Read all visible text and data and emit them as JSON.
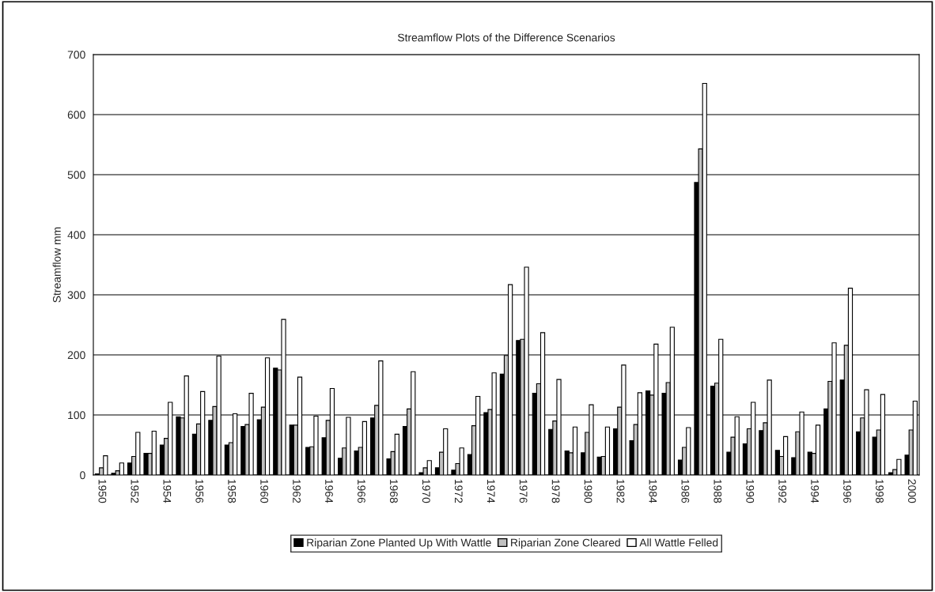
{
  "chart_data": {
    "type": "bar",
    "title": "Streamflow Plots of the Difference Scenarios",
    "ylabel": "Streamflow mm",
    "categories": [
      "1950",
      null,
      "1952",
      null,
      "1954",
      null,
      "1956",
      null,
      "1958",
      null,
      "1960",
      null,
      "1962",
      null,
      "1964",
      null,
      "1966",
      null,
      "1968",
      null,
      "1970",
      null,
      "1972",
      null,
      "1974",
      null,
      "1976",
      null,
      "1978",
      null,
      "1980",
      null,
      "1982",
      null,
      "1984",
      null,
      "1986",
      null,
      "1988",
      null,
      "1990",
      null,
      "1992",
      null,
      "1994",
      null,
      "1996",
      null,
      "1998",
      null,
      "2000"
    ],
    "series": [
      {
        "name": "Riparian Zone Planted Up With Wattle",
        "color": "#000000",
        "values": [
          2,
          3,
          20,
          36,
          50,
          97,
          68,
          91,
          50,
          81,
          92,
          178,
          83,
          46,
          62,
          28,
          40,
          95,
          27,
          81,
          4,
          12,
          8,
          34,
          104,
          168,
          224,
          136,
          76,
          40,
          37,
          30,
          77,
          57,
          140,
          136,
          25,
          487,
          148,
          38,
          52,
          74,
          41,
          29,
          38,
          110,
          158,
          72,
          63,
          4,
          33
        ]
      },
      {
        "name": "Riparian Zone Cleared",
        "color": "#c0c0c0",
        "values": [
          12,
          7,
          31,
          36,
          61,
          95,
          85,
          114,
          54,
          84,
          113,
          175,
          83,
          47,
          91,
          45,
          46,
          116,
          39,
          110,
          12,
          38,
          19,
          82,
          109,
          199,
          226,
          152,
          90,
          37,
          71,
          31,
          113,
          84,
          133,
          154,
          46,
          543,
          153,
          63,
          77,
          87,
          31,
          72,
          36,
          156,
          216,
          95,
          75,
          9,
          75
        ]
      },
      {
        "name": "All Wattle Felled",
        "color": "#ffffff",
        "values": [
          32,
          20,
          71,
          73,
          121,
          165,
          139,
          198,
          102,
          136,
          195,
          259,
          163,
          98,
          144,
          96,
          89,
          190,
          68,
          172,
          24,
          77,
          45,
          131,
          170,
          317,
          346,
          237,
          159,
          80,
          117,
          80,
          183,
          137,
          218,
          246,
          79,
          652,
          226,
          97,
          121,
          158,
          64,
          105,
          83,
          220,
          311,
          142,
          134,
          26,
          123
        ]
      }
    ],
    "ylim": [
      0,
      700
    ],
    "yticks": [
      0,
      100,
      200,
      300,
      400,
      500,
      600,
      700
    ],
    "grid": "y",
    "legend": "bottom"
  }
}
